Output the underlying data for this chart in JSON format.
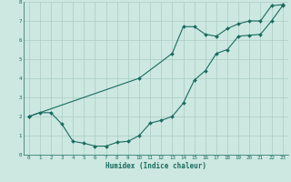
{
  "xlabel": "Humidex (Indice chaleur)",
  "ylabel": "",
  "bg_color": "#cce8e0",
  "grid_color": "#aaccC4",
  "line_color": "#1a6b60",
  "xlim": [
    -0.5,
    23.5
  ],
  "ylim": [
    0,
    8
  ],
  "xticks": [
    0,
    1,
    2,
    3,
    4,
    5,
    6,
    7,
    8,
    9,
    10,
    11,
    12,
    13,
    14,
    15,
    16,
    17,
    18,
    19,
    20,
    21,
    22,
    23
  ],
  "yticks": [
    0,
    1,
    2,
    3,
    4,
    5,
    6,
    7,
    8
  ],
  "line1_x": [
    0,
    1,
    2,
    3,
    4,
    5,
    6,
    7,
    8,
    9,
    10,
    11,
    12,
    13,
    14,
    15,
    16,
    17,
    18,
    19,
    20,
    21,
    22,
    23
  ],
  "line1_y": [
    2.0,
    2.2,
    2.2,
    1.6,
    0.7,
    0.6,
    0.45,
    0.45,
    0.65,
    0.7,
    1.0,
    1.65,
    1.8,
    2.0,
    2.7,
    3.9,
    4.4,
    5.3,
    5.5,
    6.2,
    6.25,
    6.3,
    7.0,
    7.8
  ],
  "line2_x": [
    0,
    10,
    13,
    14,
    15,
    16,
    17,
    18,
    19,
    20,
    21,
    22,
    23
  ],
  "line2_y": [
    2.0,
    4.0,
    5.3,
    6.7,
    6.7,
    6.3,
    6.2,
    6.6,
    6.85,
    7.0,
    7.0,
    7.8,
    7.85
  ]
}
